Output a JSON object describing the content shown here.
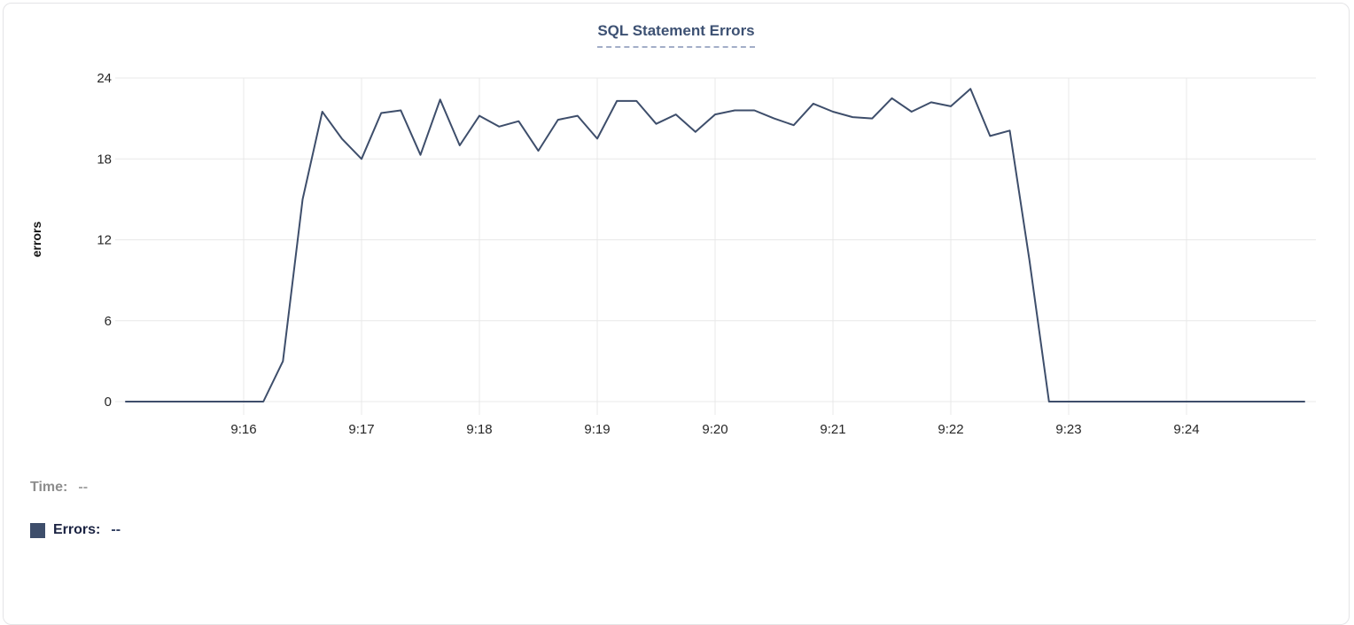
{
  "readout": {
    "time_label": "Time:",
    "time_value": "--",
    "errors_label": "Errors:",
    "errors_value": "--"
  },
  "colors": {
    "line": "#3e4e6b",
    "title": "#3d5173",
    "grid": "#e8e8e8",
    "tick_text": "#262626",
    "swatch": "#3e4e6b"
  },
  "chart_data": {
    "type": "line",
    "title": "SQL Statement Errors",
    "xlabel": "",
    "ylabel": "errors",
    "ylim": [
      0,
      24
    ],
    "yticks": [
      0,
      6,
      12,
      18,
      24
    ],
    "xtick_labels": [
      "9:16",
      "9:17",
      "9:18",
      "9:19",
      "9:20",
      "9:21",
      "9:22",
      "9:23",
      "9:24"
    ],
    "x_range": [
      "9:15:00",
      "9:25:00"
    ],
    "sample_interval_sec": 10,
    "grid": true,
    "legend_position": "below",
    "series": [
      {
        "name": "Errors",
        "color": "#3e4e6b",
        "x": [
          "9:15:00",
          "9:15:10",
          "9:15:20",
          "9:15:30",
          "9:15:40",
          "9:15:50",
          "9:16:00",
          "9:16:10",
          "9:16:20",
          "9:16:30",
          "9:16:40",
          "9:16:50",
          "9:17:00",
          "9:17:10",
          "9:17:20",
          "9:17:30",
          "9:17:40",
          "9:17:50",
          "9:18:00",
          "9:18:10",
          "9:18:20",
          "9:18:30",
          "9:18:40",
          "9:18:50",
          "9:19:00",
          "9:19:10",
          "9:19:20",
          "9:19:30",
          "9:19:40",
          "9:19:50",
          "9:20:00",
          "9:20:10",
          "9:20:20",
          "9:20:30",
          "9:20:40",
          "9:20:50",
          "9:21:00",
          "9:21:10",
          "9:21:20",
          "9:21:30",
          "9:21:40",
          "9:21:50",
          "9:22:00",
          "9:22:10",
          "9:22:20",
          "9:22:30",
          "9:22:40",
          "9:22:50",
          "9:23:00",
          "9:23:10",
          "9:23:20",
          "9:23:30",
          "9:23:40",
          "9:23:50",
          "9:24:00",
          "9:24:10",
          "9:24:20",
          "9:24:30",
          "9:24:40",
          "9:24:50",
          "9:25:00"
        ],
        "values": [
          0,
          0,
          0,
          0,
          0,
          0,
          0,
          0,
          3,
          15,
          21.5,
          19.5,
          18,
          21.4,
          21.6,
          18.3,
          22.4,
          19,
          21.2,
          20.4,
          20.8,
          18.6,
          20.9,
          21.2,
          19.5,
          22.3,
          22.3,
          20.6,
          21.3,
          20,
          21.3,
          21.6,
          21.6,
          21,
          20.5,
          22.1,
          21.5,
          21.1,
          21,
          22.5,
          21.5,
          22.2,
          21.9,
          23.2,
          19.7,
          20.1,
          10.5,
          0,
          0,
          0,
          0,
          0,
          0,
          0,
          0,
          0,
          0,
          0,
          0,
          0,
          0
        ]
      }
    ]
  }
}
